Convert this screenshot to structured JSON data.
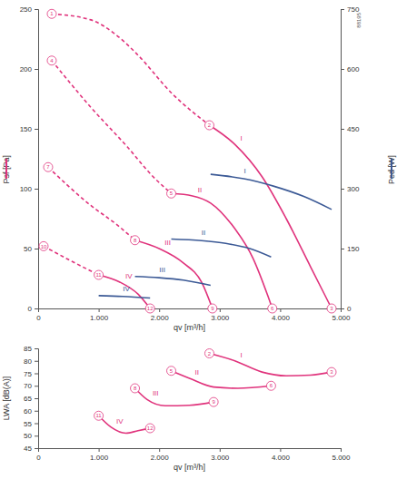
{
  "chart_data": [
    {
      "type": "line",
      "subtitle": "88195",
      "x_label": "qv [m³/h]",
      "y_label": "Psf [Pa]",
      "y2_label": "Ped [W]",
      "xlim": [
        0,
        5000
      ],
      "xticks": [
        0,
        {
          "value": 1000,
          "label": "1.000"
        },
        {
          "value": 2000,
          "label": "2.000"
        },
        {
          "value": 3000,
          "label": "3.000"
        },
        {
          "value": 4000,
          "label": "4.000"
        },
        {
          "value": 5000,
          "label": "5.000"
        }
      ],
      "ylim": [
        0,
        250
      ],
      "yticks": [
        0,
        50,
        100,
        150,
        200,
        250
      ],
      "y2lim": [
        0,
        750
      ],
      "y2ticks": [
        0,
        150,
        300,
        450,
        600,
        750
      ],
      "grid": false,
      "series": [
        {
          "name": "I",
          "color": "#e0337c",
          "line_style": "solid",
          "x": [
            2830,
            3250,
            3700,
            4100,
            4500,
            4850
          ],
          "values": [
            153,
            137,
            110,
            75,
            35,
            0
          ]
        },
        {
          "name": "II",
          "color": "#e0337c",
          "line_style": "solid",
          "x": [
            2200,
            2550,
            2850,
            3200,
            3550,
            3800,
            3870
          ],
          "values": [
            96,
            94,
            88,
            70,
            42,
            10,
            0
          ]
        },
        {
          "name": "III",
          "color": "#e0337c",
          "line_style": "solid",
          "x": [
            1600,
            2000,
            2400,
            2700,
            2880
          ],
          "values": [
            57,
            50,
            38,
            22,
            0
          ]
        },
        {
          "name": "IV",
          "color": "#e0337c",
          "line_style": "solid",
          "x": [
            1000,
            1350,
            1650,
            1850
          ],
          "values": [
            28,
            22,
            12,
            0
          ]
        },
        {
          "color": "#e0337c",
          "line_style": "dashed",
          "x": [
            225,
            870,
            1300,
            1622,
            2222,
            2830
          ],
          "values": [
            246,
            241,
            228,
            213,
            179,
            153
          ]
        },
        {
          "color": "#e0337c",
          "line_style": "dashed",
          "x": [
            225,
            870,
            1472,
            1900,
            2200
          ],
          "values": [
            207,
            168,
            135,
            110,
            96
          ]
        },
        {
          "color": "#e0337c",
          "line_style": "dashed",
          "x": [
            165,
            870,
            1300,
            1600
          ],
          "values": [
            118,
            86,
            70,
            57
          ]
        },
        {
          "color": "#e0337c",
          "line_style": "dashed",
          "x": [
            90,
            570,
            1000
          ],
          "values": [
            52,
            39,
            28
          ]
        },
        {
          "name": "I",
          "color": "#3c5a96",
          "line_style": "solid",
          "axis": "y2",
          "x": [
            2850,
            3400,
            3900,
            4400,
            4850
          ],
          "values": [
            336,
            325,
            306,
            280,
            248
          ]
        },
        {
          "name": "II",
          "color": "#3c5a96",
          "line_style": "solid",
          "axis": "y2",
          "x": [
            2200,
            2700,
            3100,
            3500,
            3850
          ],
          "values": [
            174,
            170,
            163,
            150,
            129
          ]
        },
        {
          "name": "III",
          "color": "#3c5a96",
          "line_style": "solid",
          "axis": "y2",
          "x": [
            1600,
            2000,
            2400,
            2850
          ],
          "values": [
            80,
            77,
            71,
            58
          ]
        },
        {
          "name": "IV",
          "color": "#3c5a96",
          "line_style": "solid",
          "axis": "y2",
          "x": [
            1000,
            1400,
            1850
          ],
          "values": [
            32,
            30,
            26
          ]
        }
      ],
      "annotations": [
        {
          "text": "1",
          "x": 225,
          "y": 246
        },
        {
          "text": "4",
          "x": 225,
          "y": 207
        },
        {
          "text": "7",
          "x": 165,
          "y": 118
        },
        {
          "text": "10",
          "x": 90,
          "y": 52
        },
        {
          "text": "2",
          "x": 2830,
          "y": 153
        },
        {
          "text": "5",
          "x": 2200,
          "y": 96
        },
        {
          "text": "8",
          "x": 1600,
          "y": 57
        },
        {
          "text": "11",
          "x": 1000,
          "y": 28
        },
        {
          "text": "3",
          "x": 4850,
          "y": 0
        },
        {
          "text": "6",
          "x": 3870,
          "y": 0
        },
        {
          "text": "9",
          "x": 2880,
          "y": 0
        },
        {
          "text": "12",
          "x": 1850,
          "y": 0
        }
      ]
    },
    {
      "type": "line",
      "x_label": "qv [m³/h]",
      "y_label": "LWA [dB(A)]",
      "xlim": [
        0,
        5000
      ],
      "xticks": [
        0,
        {
          "value": 1000,
          "label": "1.000"
        },
        {
          "value": 2000,
          "label": "2.000"
        },
        {
          "value": 3000,
          "label": "3.000"
        },
        {
          "value": 4000,
          "label": "4.000"
        },
        {
          "value": 5000,
          "label": "5.000"
        }
      ],
      "ylim": [
        45,
        85
      ],
      "yticks": [
        45,
        50,
        55,
        60,
        65,
        70,
        75,
        80,
        85
      ],
      "grid": false,
      "series": [
        {
          "name": "I",
          "color": "#e0337c",
          "line_style": "solid",
          "x": [
            2830,
            3250,
            3700,
            4100,
            4500,
            4850
          ],
          "values": [
            83,
            80,
            75.5,
            74,
            74.3,
            75.5
          ]
        },
        {
          "name": "II",
          "color": "#e0337c",
          "line_style": "solid",
          "x": [
            2200,
            2500,
            2900,
            3300,
            3850
          ],
          "values": [
            76,
            73,
            69.5,
            69,
            70
          ]
        },
        {
          "name": "III",
          "color": "#e0337c",
          "line_style": "solid",
          "x": [
            1600,
            1800,
            2100,
            2500,
            2900
          ],
          "values": [
            69,
            64.5,
            62,
            62.2,
            63.5
          ]
        },
        {
          "name": "IV",
          "color": "#e0337c",
          "line_style": "solid",
          "x": [
            1000,
            1200,
            1450,
            1650,
            1850
          ],
          "values": [
            58,
            53.5,
            51,
            52,
            53
          ]
        }
      ],
      "annotations": [
        {
          "text": "2",
          "x": 2830,
          "y": 83
        },
        {
          "text": "3",
          "x": 4850,
          "y": 75.5
        },
        {
          "text": "5",
          "x": 2200,
          "y": 76
        },
        {
          "text": "6",
          "x": 3850,
          "y": 70
        },
        {
          "text": "8",
          "x": 1600,
          "y": 69
        },
        {
          "text": "9",
          "x": 2900,
          "y": 63.5
        },
        {
          "text": "11",
          "x": 1000,
          "y": 58
        },
        {
          "text": "12",
          "x": 1850,
          "y": 53
        }
      ]
    }
  ]
}
